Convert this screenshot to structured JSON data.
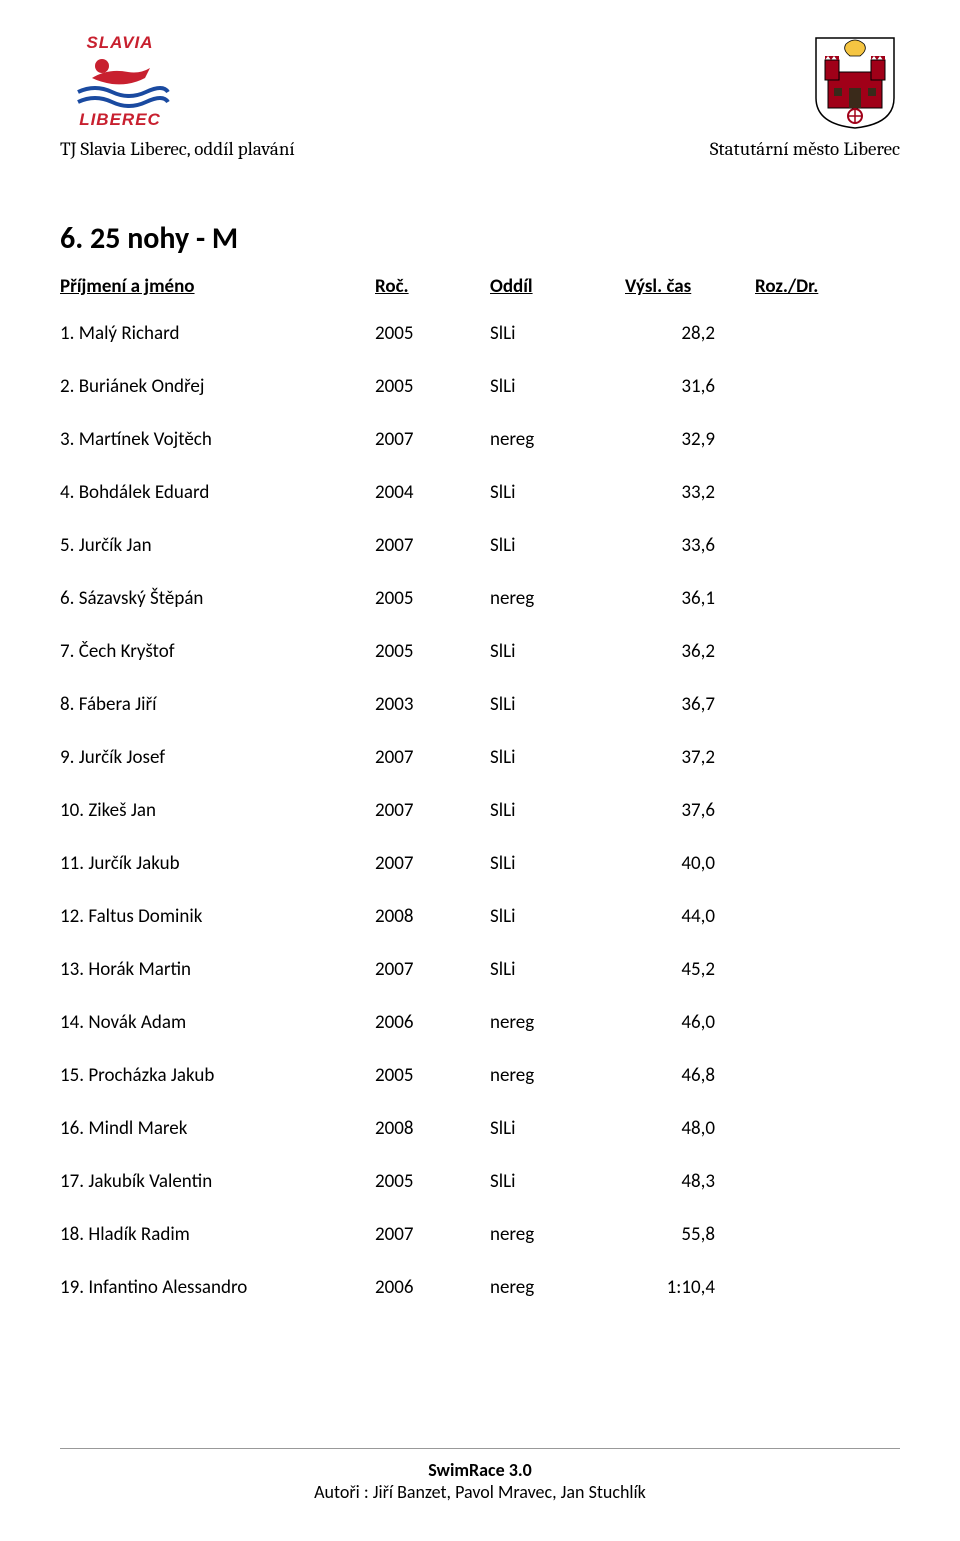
{
  "header": {
    "subtitle_left": "TJ Slavia Liberec, oddíl plavání",
    "subtitle_right": "Statutární město Liberec",
    "logo_left": {
      "top_text": "SLAVIA",
      "bottom_text": "LIBEREC",
      "top_color": "#c8202f",
      "swimmer_color": "#c8202f",
      "wave_color": "#1a4aa0"
    },
    "logo_right": {
      "castle_color": "#a00018",
      "lion_color": "#f5c542",
      "border_color": "#000000"
    }
  },
  "section_title": "6. 25 nohy - M",
  "columns": {
    "name": "Příjmení a jméno",
    "roc": "Roč.",
    "oddil": "Oddíl",
    "cas": "Výsl. čas",
    "roz": "Roz./Dr."
  },
  "rows": [
    {
      "place": "1.",
      "name": "Malý Richard",
      "roc": "2005",
      "oddil": "SlLi",
      "cas": "28,2"
    },
    {
      "place": "2.",
      "name": "Buriánek Ondřej",
      "roc": "2005",
      "oddil": "SlLi",
      "cas": "31,6"
    },
    {
      "place": "3.",
      "name": "Martínek Vojtěch",
      "roc": "2007",
      "oddil": "nereg",
      "cas": "32,9"
    },
    {
      "place": "4.",
      "name": "Bohdálek  Eduard",
      "roc": "2004",
      "oddil": "SlLi",
      "cas": "33,2"
    },
    {
      "place": "5.",
      "name": "Jurčík Jan",
      "roc": "2007",
      "oddil": "SlLi",
      "cas": "33,6"
    },
    {
      "place": "6.",
      "name": "Sázavský   Štěpán",
      "roc": "2005",
      "oddil": "nereg",
      "cas": "36,1"
    },
    {
      "place": "7.",
      "name": "Čech Kryštof",
      "roc": "2005",
      "oddil": "SlLi",
      "cas": "36,2"
    },
    {
      "place": "8.",
      "name": "Fábera Jiří",
      "roc": "2003",
      "oddil": "SlLi",
      "cas": "36,7"
    },
    {
      "place": "9.",
      "name": "Jurčík Josef",
      "roc": "2007",
      "oddil": "SlLi",
      "cas": "37,2"
    },
    {
      "place": "10.",
      "name": "Zikeš Jan",
      "roc": "2007",
      "oddil": "SlLi",
      "cas": "37,6"
    },
    {
      "place": "11.",
      "name": "Jurčík  Jakub",
      "roc": "2007",
      "oddil": "SlLi",
      "cas": "40,0"
    },
    {
      "place": "12.",
      "name": "Faltus  Dominik",
      "roc": "2008",
      "oddil": "SlLi",
      "cas": "44,0"
    },
    {
      "place": "13.",
      "name": "Horák  Martin",
      "roc": "2007",
      "oddil": "SlLi",
      "cas": "45,2"
    },
    {
      "place": "14.",
      "name": " Novák Adam",
      "roc": "2006",
      "oddil": "nereg",
      "cas": "46,0"
    },
    {
      "place": "15.",
      "name": "Procházka Jakub",
      "roc": "2005",
      "oddil": "nereg",
      "cas": "46,8"
    },
    {
      "place": "16.",
      "name": "Mindl Marek",
      "roc": "2008",
      "oddil": "SlLi",
      "cas": "48,0"
    },
    {
      "place": "17.",
      "name": "Jakubík Valentin",
      "roc": "2005",
      "oddil": "SlLi",
      "cas": "48,3"
    },
    {
      "place": "18.",
      "name": "Hladík Radim",
      "roc": "2007",
      "oddil": "nereg",
      "cas": "55,8"
    },
    {
      "place": "19.",
      "name": "Infantino Alessandro",
      "roc": "2006",
      "oddil": "nereg",
      "cas": "1:10,4"
    }
  ],
  "footer": {
    "title": "SwimRace 3.0",
    "authors": "Autoři : Jiří Banzet, Pavol Mravec, Jan Stuchlík"
  }
}
